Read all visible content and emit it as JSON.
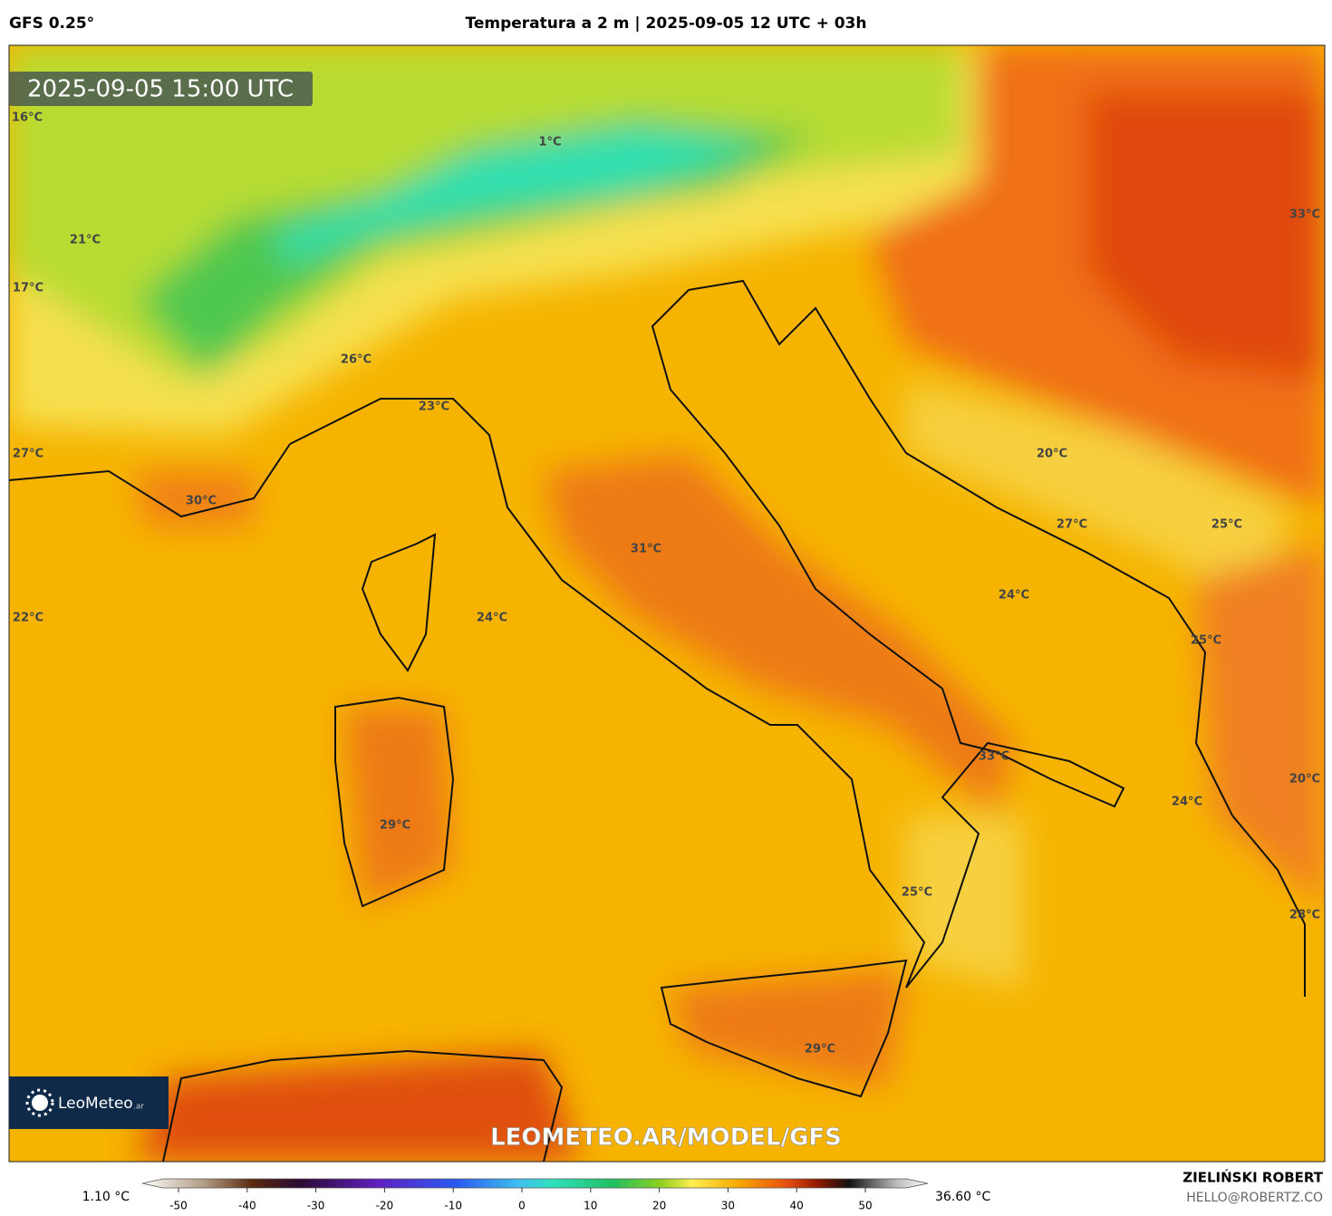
{
  "header": {
    "model": "GFS 0.25°",
    "title": "Temperatura a 2 m | 2025-09-05 12 UTC + 03h"
  },
  "timestamp": "2025-09-05 15:00 UTC",
  "map_labels": [
    "16°C",
    "1°C",
    "33°C",
    "21°C",
    "17°C",
    "26°C",
    "23°C",
    "27°C",
    "20°C",
    "30°C",
    "27°C",
    "25°C",
    "31°C",
    "24°C",
    "22°C",
    "24°C",
    "25°C",
    "33°C",
    "24°C",
    "20°C",
    "29°C",
    "25°C",
    "28°C",
    "29°C"
  ],
  "watermark": "LEOMETEO.AR/MODEL/GFS",
  "logo": {
    "name": "LeoMeteo",
    "suffix": ".ar"
  },
  "colorbar": {
    "min_label": "1.10 °C",
    "max_label": "36.60 °C",
    "ticks": [
      -50,
      -40,
      -30,
      -20,
      -10,
      0,
      10,
      20,
      30,
      40,
      50
    ]
  },
  "footer": {
    "author": "ZIELIŃSKI ROBERT",
    "email": "HELLO@ROBERTZ.CO"
  }
}
